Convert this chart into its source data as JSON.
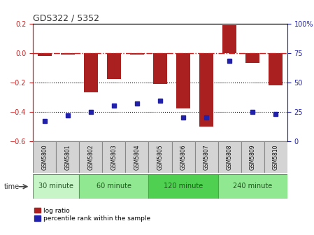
{
  "title": "GDS322 / 5352",
  "samples": [
    "GSM5800",
    "GSM5801",
    "GSM5802",
    "GSM5803",
    "GSM5804",
    "GSM5805",
    "GSM5806",
    "GSM5807",
    "GSM5808",
    "GSM5809",
    "GSM5810"
  ],
  "log_ratio": [
    -0.02,
    -0.01,
    -0.27,
    -0.18,
    -0.01,
    -0.21,
    -0.38,
    -0.5,
    0.19,
    -0.07,
    -0.22
  ],
  "percentile": [
    17,
    22,
    25,
    30,
    32,
    34,
    20,
    20,
    68,
    25,
    23
  ],
  "groups": [
    {
      "label": "30 minute",
      "start": 0,
      "end": 1,
      "color": "#c8f5c8"
    },
    {
      "label": "60 minute",
      "start": 2,
      "end": 4,
      "color": "#90e890"
    },
    {
      "label": "120 minute",
      "start": 5,
      "end": 7,
      "color": "#50d050"
    },
    {
      "label": "240 minute",
      "start": 8,
      "end": 10,
      "color": "#90e890"
    }
  ],
  "ylim_left": [
    -0.6,
    0.2
  ],
  "ylim_right": [
    0,
    100
  ],
  "bar_color": "#aa2020",
  "dot_color": "#2020aa",
  "hline_color": "#cc2020",
  "dot_gridline_color": "#000000",
  "bg_color": "#ffffff",
  "plot_bg": "#ffffff",
  "label_bg": "#d4d4d4",
  "label_border": "#888888",
  "left_tick_color": "#cc2020",
  "right_tick_color": "#2020aa"
}
